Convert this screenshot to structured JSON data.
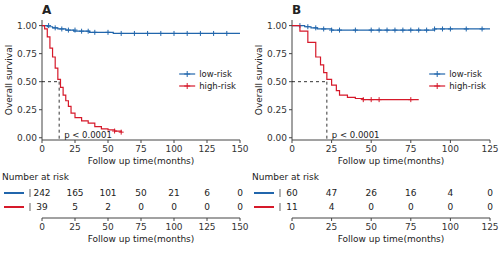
{
  "chart_data": [
    {
      "type": "step",
      "title": "A",
      "xlabel": "Follow up time(months)",
      "ylabel": "Overall survival",
      "xlim": [
        0,
        150
      ],
      "ylim": [
        -0.02,
        1.05
      ],
      "xticks": [
        0,
        25,
        50,
        75,
        100,
        125,
        150
      ],
      "yticks": [
        {
          "value": 0.0,
          "label": "0.00"
        },
        {
          "value": 0.25,
          "label": "0.25"
        },
        {
          "value": 0.5,
          "label": "0.50"
        },
        {
          "value": 0.75,
          "label": "0.75"
        },
        {
          "value": 1.0,
          "label": "1.00"
        }
      ],
      "legend": "right",
      "annotations": [
        "p < 0.0001"
      ],
      "median_line": {
        "x": 13,
        "y": 0.5
      },
      "series": [
        {
          "name": "low-risk",
          "color": "#2166ac",
          "x": [
            0,
            2,
            4,
            6,
            8,
            10,
            12,
            15,
            18,
            21,
            24,
            30,
            36,
            42,
            48,
            54,
            60,
            70,
            80,
            90,
            100,
            110,
            120,
            130,
            140,
            150
          ],
          "values": [
            1.0,
            1.0,
            0.99,
            0.99,
            0.98,
            0.98,
            0.97,
            0.97,
            0.96,
            0.96,
            0.95,
            0.95,
            0.94,
            0.94,
            0.94,
            0.93,
            0.93,
            0.93,
            0.93,
            0.93,
            0.93,
            0.93,
            0.93,
            0.93,
            0.93,
            0.93
          ],
          "censors_x": [
            5,
            10,
            15,
            20,
            25,
            30,
            35,
            40,
            50,
            60,
            70,
            80,
            90,
            100,
            110,
            120,
            130,
            140
          ],
          "censors_values": [
            1.0,
            0.98,
            0.97,
            0.96,
            0.96,
            0.95,
            0.95,
            0.94,
            0.94,
            0.93,
            0.93,
            0.93,
            0.93,
            0.93,
            0.93,
            0.93,
            0.93,
            0.93
          ]
        },
        {
          "name": "high-risk",
          "color": "#d6192a",
          "x": [
            0,
            2,
            4,
            6,
            8,
            10,
            12,
            14,
            16,
            18,
            20,
            22,
            25,
            30,
            35,
            40,
            45,
            50,
            55,
            60
          ],
          "values": [
            1.0,
            0.97,
            0.9,
            0.8,
            0.72,
            0.62,
            0.52,
            0.45,
            0.38,
            0.33,
            0.28,
            0.22,
            0.18,
            0.15,
            0.13,
            0.1,
            0.08,
            0.07,
            0.06,
            0.05
          ],
          "censors_x": [
            55,
            60
          ],
          "censors_values": [
            0.06,
            0.05
          ]
        }
      ],
      "risk_table": {
        "title": "Number at risk",
        "times": [
          0,
          25,
          50,
          75,
          100,
          125,
          150
        ],
        "series": [
          {
            "color": "#2166ac",
            "values": [
              242,
              165,
              101,
              50,
              21,
              6,
              0
            ]
          },
          {
            "color": "#d6192a",
            "values": [
              39,
              5,
              2,
              0,
              0,
              0,
              0
            ]
          }
        ]
      }
    },
    {
      "type": "step",
      "title": "B",
      "xlabel": "Follow up time(months)",
      "ylabel": "Overall survival",
      "xlim": [
        0,
        125
      ],
      "ylim": [
        -0.02,
        1.05
      ],
      "xticks": [
        0,
        25,
        50,
        75,
        100,
        125
      ],
      "yticks": [
        {
          "value": 0.0,
          "label": "0.00"
        },
        {
          "value": 0.25,
          "label": "0.25"
        },
        {
          "value": 0.5,
          "label": "0.50"
        },
        {
          "value": 0.75,
          "label": "0.75"
        },
        {
          "value": 1.0,
          "label": "1.00"
        }
      ],
      "legend": "right",
      "annotations": [
        "p < 0.0001"
      ],
      "median_line": {
        "x": 22,
        "y": 0.5
      },
      "series": [
        {
          "name": "low-risk",
          "color": "#2166ac",
          "x": [
            0,
            2,
            5,
            8,
            12,
            16,
            20,
            25,
            30,
            40,
            50,
            60,
            70,
            80,
            90,
            100,
            110,
            120,
            125
          ],
          "values": [
            1.0,
            1.0,
            1.0,
            0.99,
            0.98,
            0.97,
            0.97,
            0.96,
            0.96,
            0.96,
            0.96,
            0.96,
            0.96,
            0.96,
            0.97,
            0.97,
            0.97,
            0.97,
            0.97
          ],
          "censors_x": [
            5,
            10,
            15,
            20,
            25,
            30,
            40,
            50,
            55,
            60,
            65,
            70,
            75,
            80,
            85,
            90,
            95,
            100,
            110,
            120
          ],
          "censors_values": [
            1.0,
            0.99,
            0.98,
            0.97,
            0.96,
            0.96,
            0.96,
            0.96,
            0.96,
            0.96,
            0.96,
            0.96,
            0.96,
            0.96,
            0.96,
            0.97,
            0.97,
            0.97,
            0.97,
            0.97
          ]
        },
        {
          "name": "high-risk",
          "color": "#d6192a",
          "x": [
            0,
            5,
            10,
            15,
            18,
            20,
            22,
            25,
            28,
            30,
            35,
            40,
            45,
            50,
            55,
            60,
            70,
            80
          ],
          "values": [
            1.0,
            0.95,
            0.85,
            0.72,
            0.65,
            0.58,
            0.52,
            0.47,
            0.42,
            0.38,
            0.36,
            0.35,
            0.34,
            0.34,
            0.34,
            0.34,
            0.34,
            0.34
          ],
          "censors_x": [
            45,
            50,
            55,
            75
          ],
          "censors_values": [
            0.34,
            0.34,
            0.34,
            0.34
          ]
        }
      ],
      "risk_table": {
        "title": "Number at risk",
        "times": [
          0,
          25,
          50,
          75,
          100,
          125
        ],
        "series": [
          {
            "color": "#2166ac",
            "values": [
              60,
              47,
              26,
              16,
              4,
              0
            ]
          },
          {
            "color": "#d6192a",
            "values": [
              11,
              4,
              0,
              0,
              0,
              0
            ]
          }
        ]
      }
    }
  ]
}
